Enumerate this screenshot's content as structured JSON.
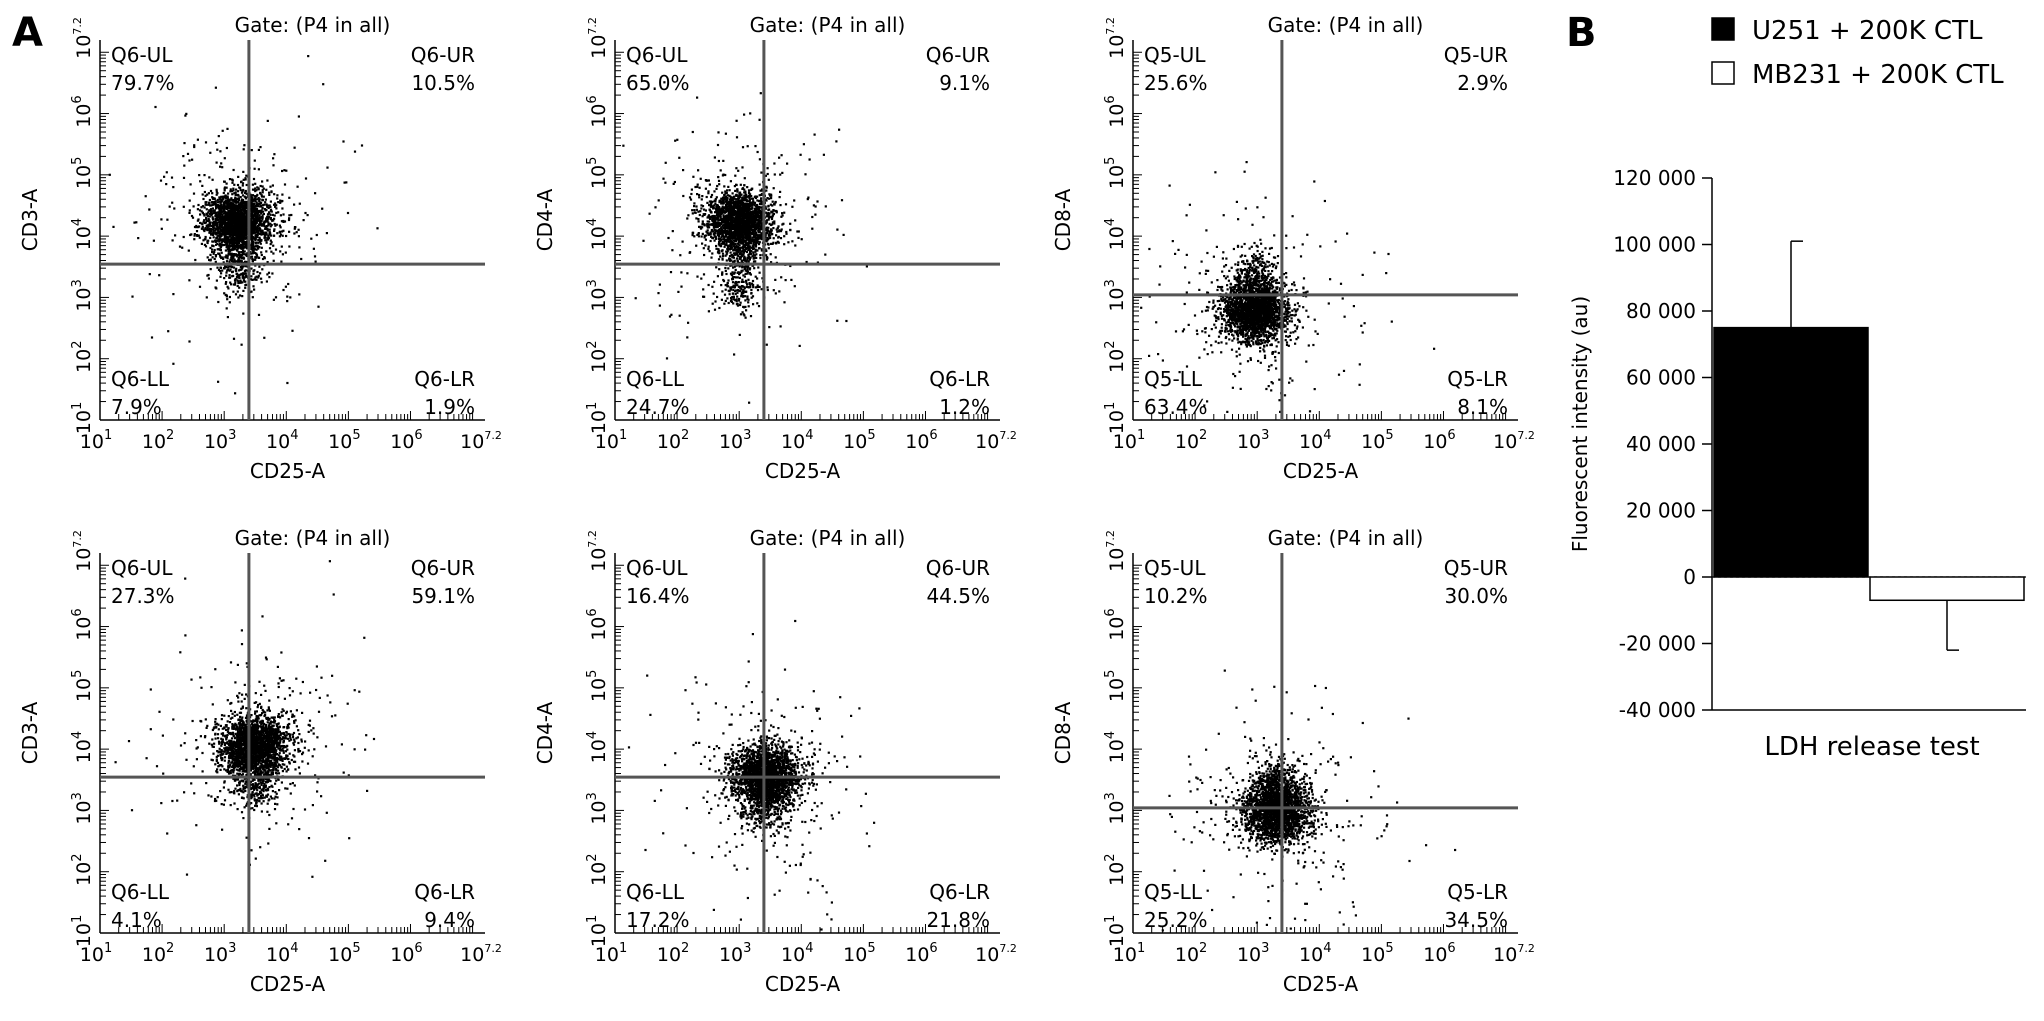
{
  "panel_labels": {
    "a": "A",
    "b": "B"
  },
  "chart_data": [
    {
      "type": "scatter",
      "panel": "A",
      "gate_label": "Gate: (P4 in all)",
      "xlabel": "CD25-A",
      "ylabel": "CD3-A",
      "x_scale": "log",
      "y_scale": "log",
      "xlim": [
        10,
        15848932
      ],
      "ylim": [
        10,
        15848932
      ],
      "x_tick_labels": [
        "10",
        "10",
        "10",
        "10",
        "10",
        "10",
        "10"
      ],
      "x_tick_exponents": [
        "1",
        "2",
        "3",
        "4",
        "5",
        "6",
        "7.2"
      ],
      "y_tick_labels": [
        "10",
        "10",
        "10",
        "10",
        "10",
        "10",
        "10"
      ],
      "y_tick_exponents": [
        "1",
        "2",
        "3",
        "4",
        "5",
        "6",
        "7.2"
      ],
      "gate_x": 2500,
      "gate_y": 3500,
      "cluster": {
        "x": 1600,
        "y": 18000,
        "tail_y": 1500
      },
      "quadrants": {
        "ul": {
          "name": "Q6-UL",
          "pct": "79.7%"
        },
        "ur": {
          "name": "Q6-UR",
          "pct": "10.5%"
        },
        "ll": {
          "name": "Q6-LL",
          "pct": "7.9%"
        },
        "lr": {
          "name": "Q6-LR",
          "pct": "1.9%"
        }
      }
    },
    {
      "type": "scatter",
      "panel": "A",
      "gate_label": "Gate: (P4 in all)",
      "xlabel": "CD25-A",
      "ylabel": "CD4-A",
      "x_scale": "log",
      "y_scale": "log",
      "xlim": [
        10,
        15848932
      ],
      "ylim": [
        10,
        15848932
      ],
      "x_tick_labels": [
        "10",
        "10",
        "10",
        "10",
        "10",
        "10",
        "10"
      ],
      "x_tick_exponents": [
        "1",
        "2",
        "3",
        "4",
        "5",
        "6",
        "7.2"
      ],
      "y_tick_labels": [
        "10",
        "10",
        "10",
        "10",
        "10",
        "10",
        "10"
      ],
      "y_tick_exponents": [
        "1",
        "2",
        "3",
        "4",
        "5",
        "6",
        "7.2"
      ],
      "gate_x": 2500,
      "gate_y": 3500,
      "cluster": {
        "x": 1000,
        "y": 18000,
        "tail_y": 800
      },
      "quadrants": {
        "ul": {
          "name": "Q6-UL",
          "pct": "65.0%"
        },
        "ur": {
          "name": "Q6-UR",
          "pct": "9.1%"
        },
        "ll": {
          "name": "Q6-LL",
          "pct": "24.7%"
        },
        "lr": {
          "name": "Q6-LR",
          "pct": "1.2%"
        }
      }
    },
    {
      "type": "scatter",
      "panel": "A",
      "gate_label": "Gate: (P4 in all)",
      "xlabel": "CD25-A",
      "ylabel": "CD8-A",
      "x_scale": "log",
      "y_scale": "log",
      "xlim": [
        10,
        15848932
      ],
      "ylim": [
        10,
        15848932
      ],
      "x_tick_labels": [
        "10",
        "10",
        "10",
        "10",
        "10",
        "10",
        "10"
      ],
      "x_tick_exponents": [
        "1",
        "2",
        "3",
        "4",
        "5",
        "6",
        "7.2"
      ],
      "y_tick_labels": [
        "10",
        "10",
        "10",
        "10",
        "10",
        "10",
        "10"
      ],
      "y_tick_exponents": [
        "1",
        "2",
        "3",
        "4",
        "5",
        "6",
        "7.2"
      ],
      "gate_x": 2500,
      "gate_y": 1100,
      "cluster": {
        "x": 900,
        "y": 600,
        "tail_y": 4000
      },
      "quadrants": {
        "ul": {
          "name": "Q5-UL",
          "pct": "25.6%"
        },
        "ur": {
          "name": "Q5-UR",
          "pct": "2.9%"
        },
        "ll": {
          "name": "Q5-LL",
          "pct": "63.4%"
        },
        "lr": {
          "name": "Q5-LR",
          "pct": "8.1%"
        }
      }
    },
    {
      "type": "scatter",
      "panel": "A",
      "gate_label": "Gate: (P4 in all)",
      "xlabel": "CD25-A",
      "ylabel": "CD3-A",
      "x_scale": "log",
      "y_scale": "log",
      "xlim": [
        10,
        15848932
      ],
      "ylim": [
        10,
        15848932
      ],
      "x_tick_labels": [
        "10",
        "10",
        "10",
        "10",
        "10",
        "10",
        "10"
      ],
      "x_tick_exponents": [
        "1",
        "2",
        "3",
        "4",
        "5",
        "6",
        "7.2"
      ],
      "y_tick_labels": [
        "10",
        "10",
        "10",
        "10",
        "10",
        "10",
        "10"
      ],
      "y_tick_exponents": [
        "1",
        "2",
        "3",
        "4",
        "5",
        "6",
        "7.2"
      ],
      "gate_x": 2500,
      "gate_y": 3500,
      "cluster": {
        "x": 3000,
        "y": 12000,
        "tail_y": 1500
      },
      "quadrants": {
        "ul": {
          "name": "Q6-UL",
          "pct": "27.3%"
        },
        "ur": {
          "name": "Q6-UR",
          "pct": "59.1%"
        },
        "ll": {
          "name": "Q6-LL",
          "pct": "4.1%"
        },
        "lr": {
          "name": "Q6-LR",
          "pct": "9.4%"
        }
      }
    },
    {
      "type": "scatter",
      "panel": "A",
      "gate_label": "Gate: (P4 in all)",
      "xlabel": "CD25-A",
      "ylabel": "CD4-A",
      "x_scale": "log",
      "y_scale": "log",
      "xlim": [
        10,
        15848932
      ],
      "ylim": [
        10,
        15848932
      ],
      "x_tick_labels": [
        "10",
        "10",
        "10",
        "10",
        "10",
        "10",
        "10"
      ],
      "x_tick_exponents": [
        "1",
        "2",
        "3",
        "4",
        "5",
        "6",
        "7.2"
      ],
      "y_tick_labels": [
        "10",
        "10",
        "10",
        "10",
        "10",
        "10",
        "10"
      ],
      "y_tick_exponents": [
        "1",
        "2",
        "3",
        "4",
        "5",
        "6",
        "7.2"
      ],
      "gate_x": 2500,
      "gate_y": 3500,
      "cluster": {
        "x": 2500,
        "y": 4000,
        "tail_y": 600
      },
      "quadrants": {
        "ul": {
          "name": "Q6-UL",
          "pct": "16.4%"
        },
        "ur": {
          "name": "Q6-UR",
          "pct": "44.5%"
        },
        "ll": {
          "name": "Q6-LL",
          "pct": "17.2%"
        },
        "lr": {
          "name": "Q6-LR",
          "pct": "21.8%"
        }
      }
    },
    {
      "type": "scatter",
      "panel": "A",
      "gate_label": "Gate: (P4 in all)",
      "xlabel": "CD25-A",
      "ylabel": "CD8-A",
      "x_scale": "log",
      "y_scale": "log",
      "xlim": [
        10,
        15848932
      ],
      "ylim": [
        10,
        15848932
      ],
      "x_tick_labels": [
        "10",
        "10",
        "10",
        "10",
        "10",
        "10",
        "10"
      ],
      "x_tick_exponents": [
        "1",
        "2",
        "3",
        "4",
        "5",
        "6",
        "7.2"
      ],
      "y_tick_labels": [
        "10",
        "10",
        "10",
        "10",
        "10",
        "10",
        "10"
      ],
      "y_tick_exponents": [
        "1",
        "2",
        "3",
        "4",
        "5",
        "6",
        "7.2"
      ],
      "gate_x": 2500,
      "gate_y": 1100,
      "cluster": {
        "x": 2000,
        "y": 1000,
        "tail_y": 5000
      },
      "quadrants": {
        "ul": {
          "name": "Q5-UL",
          "pct": "10.2%"
        },
        "ur": {
          "name": "Q5-UR",
          "pct": "30.0%"
        },
        "ll": {
          "name": "Q5-LL",
          "pct": "25.2%"
        },
        "lr": {
          "name": "Q5-LR",
          "pct": "34.5%"
        }
      }
    },
    {
      "type": "bar",
      "panel": "B",
      "xlabel": "LDH release test",
      "ylabel": "Fluorescent intensity (au)",
      "ylim": [
        -40000,
        120000
      ],
      "y_ticks": [
        120000,
        100000,
        80000,
        60000,
        40000,
        20000,
        0,
        -20000,
        -40000
      ],
      "y_tick_labels": [
        "120 000",
        "100 000",
        "80 000",
        "60 000",
        "40 000",
        "20 000",
        "0",
        "-20 000",
        "-40 000"
      ],
      "series": [
        {
          "name": "U251 + 200K CTL",
          "value": 75000,
          "error": 26000,
          "color": "#000000"
        },
        {
          "name": "MB231 + 200K CTL",
          "value": -7000,
          "error": 15000,
          "color": "#ffffff"
        }
      ],
      "legend_position": "top"
    }
  ]
}
